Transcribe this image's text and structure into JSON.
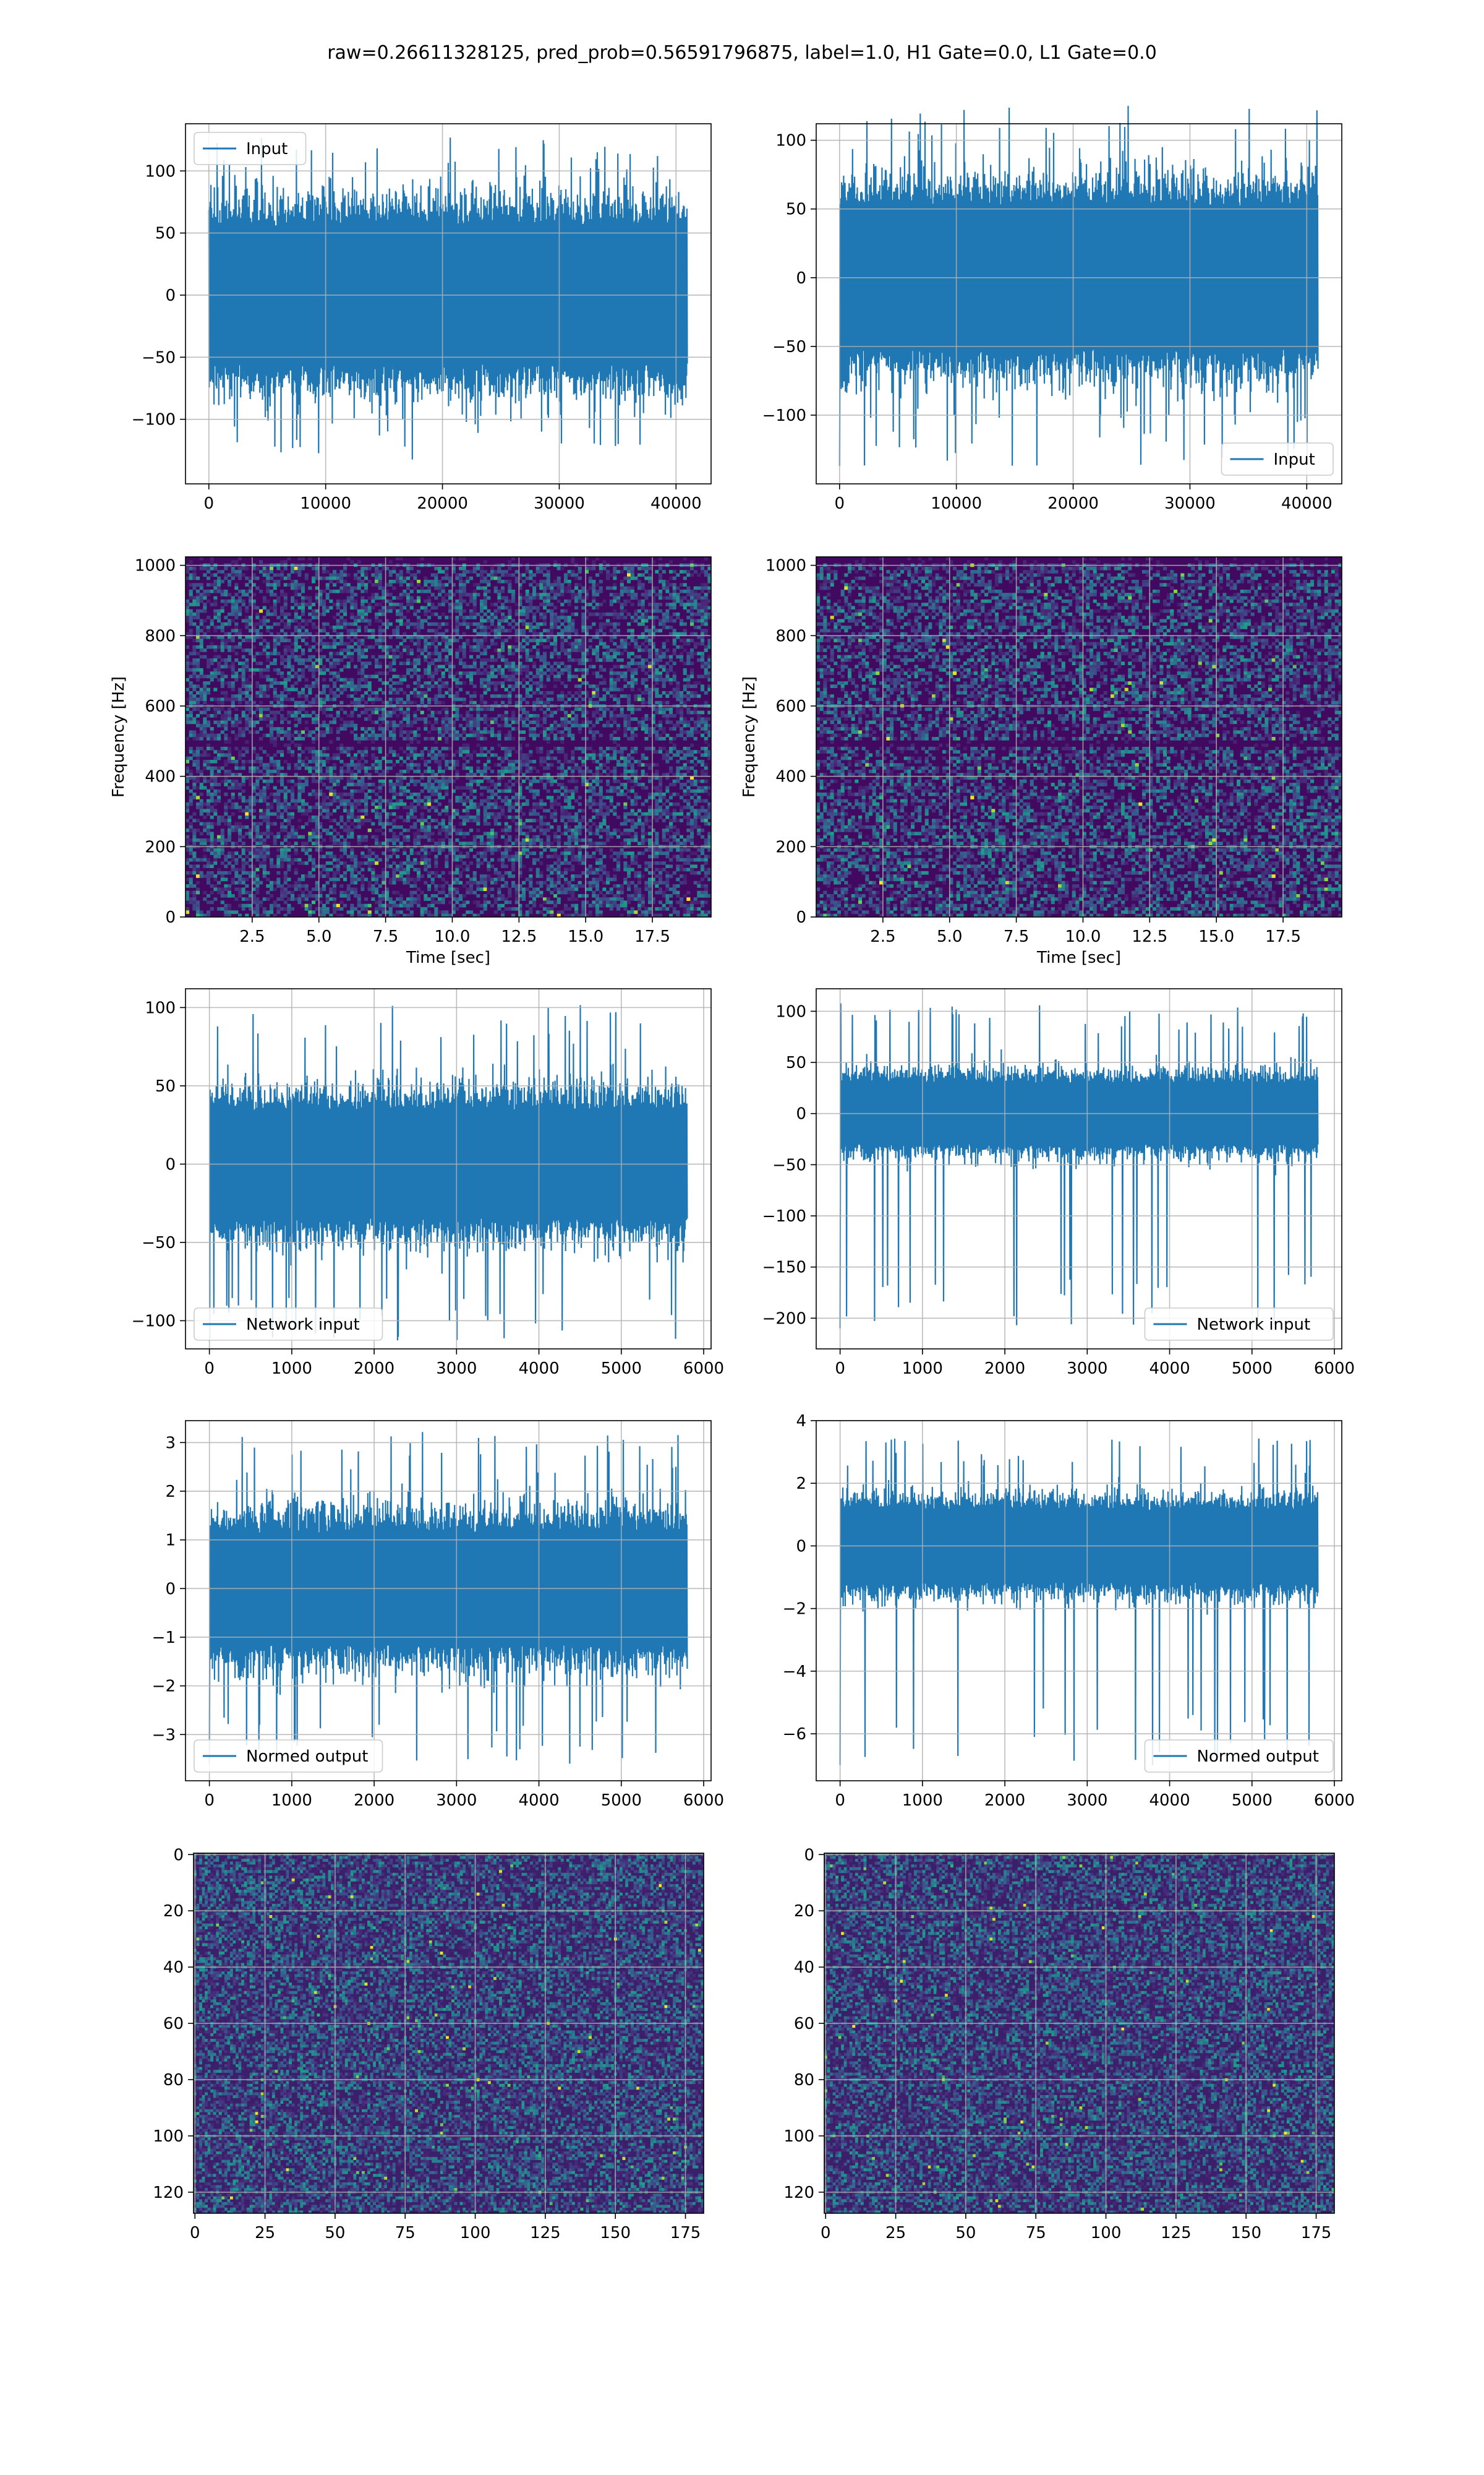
{
  "figure_title": "raw=0.26611328125, pred_prob=0.56591796875, label=1.0, H1 Gate=0.0, L1 Gate=0.0",
  "colors": {
    "series": "#1f77b4",
    "grid": "#b0b0b0",
    "viridis_dark": "#440154",
    "viridis_mid": "#31688e",
    "viridis_teal": "#35b779",
    "viridis_yellow": "#fde725"
  },
  "chart_data": [
    {
      "id": "input-h1",
      "type": "line",
      "title": "",
      "series": [
        {
          "name": "Input",
          "n": 40960,
          "amplitude": 48,
          "peak_min": -135,
          "peak_max": 128
        }
      ],
      "xlim": [
        -2000,
        43000
      ],
      "ylim": [
        -152,
        138
      ],
      "xticks": [
        0,
        10000,
        20000,
        30000,
        40000
      ],
      "xtick_labels": [
        "0",
        "10000",
        "20000",
        "30000",
        "40000"
      ],
      "yticks": [
        -100,
        -50,
        0,
        50,
        100
      ],
      "ytick_labels": [
        "−100",
        "−50",
        "0",
        "50",
        "100"
      ],
      "xlabel": "",
      "ylabel": "",
      "legend": "upper left",
      "grid": true
    },
    {
      "id": "input-l1",
      "type": "line",
      "title": "",
      "series": [
        {
          "name": "Input",
          "n": 40960,
          "amplitude": 45,
          "peak_min": -137,
          "peak_max": 126
        }
      ],
      "xlim": [
        -2000,
        43000
      ],
      "ylim": [
        -150,
        112
      ],
      "xticks": [
        0,
        10000,
        20000,
        30000,
        40000
      ],
      "xtick_labels": [
        "0",
        "10000",
        "20000",
        "30000",
        "40000"
      ],
      "yticks": [
        -100,
        -50,
        0,
        50,
        100
      ],
      "ytick_labels": [
        "−100",
        "−50",
        "0",
        "50",
        "100"
      ],
      "xlabel": "",
      "ylabel": "",
      "legend": "lower right",
      "grid": true
    },
    {
      "id": "spectrogram-h1",
      "type": "heatmap",
      "title": "",
      "xlim": [
        0,
        19.7
      ],
      "ylim": [
        0,
        1024
      ],
      "xticks": [
        2.5,
        5.0,
        7.5,
        10.0,
        12.5,
        15.0,
        17.5
      ],
      "xtick_labels": [
        "2.5",
        "5.0",
        "7.5",
        "10.0",
        "12.5",
        "15.0",
        "17.5"
      ],
      "yticks": [
        0,
        200,
        400,
        600,
        800,
        1000
      ],
      "ytick_labels": [
        "0",
        "200",
        "400",
        "600",
        "800",
        "1000"
      ],
      "xlabel": "Time [sec]",
      "ylabel": "Frequency [Hz]",
      "grid": true
    },
    {
      "id": "spectrogram-l1",
      "type": "heatmap",
      "title": "",
      "xlim": [
        0,
        19.7
      ],
      "ylim": [
        0,
        1024
      ],
      "xticks": [
        2.5,
        5.0,
        7.5,
        10.0,
        12.5,
        15.0,
        17.5
      ],
      "xtick_labels": [
        "2.5",
        "5.0",
        "7.5",
        "10.0",
        "12.5",
        "15.0",
        "17.5"
      ],
      "yticks": [
        0,
        200,
        400,
        600,
        800,
        1000
      ],
      "ytick_labels": [
        "0",
        "200",
        "400",
        "600",
        "800",
        "1000"
      ],
      "xlabel": "Time [sec]",
      "ylabel": "Frequency [Hz]",
      "grid": true
    },
    {
      "id": "network-input-h1",
      "type": "line",
      "title": "",
      "series": [
        {
          "name": "Network input",
          "n": 5800,
          "amplitude": 30,
          "peak_min": -113,
          "peak_max": 102
        }
      ],
      "xlim": [
        -290,
        6090
      ],
      "ylim": [
        -118,
        112
      ],
      "xticks": [
        0,
        1000,
        2000,
        3000,
        4000,
        5000,
        6000
      ],
      "xtick_labels": [
        "0",
        "1000",
        "2000",
        "3000",
        "4000",
        "5000",
        "6000"
      ],
      "yticks": [
        -100,
        -50,
        0,
        50,
        100
      ],
      "ytick_labels": [
        "−100",
        "−50",
        "0",
        "50",
        "100"
      ],
      "xlabel": "",
      "ylabel": "",
      "legend": "lower left",
      "grid": true
    },
    {
      "id": "network-input-l1",
      "type": "line",
      "title": "",
      "series": [
        {
          "name": "Network input",
          "n": 5800,
          "amplitude": 26,
          "peak_min": -210,
          "peak_max": 108
        }
      ],
      "xlim": [
        -290,
        6090
      ],
      "ylim": [
        -230,
        122
      ],
      "xticks": [
        0,
        1000,
        2000,
        3000,
        4000,
        5000,
        6000
      ],
      "xtick_labels": [
        "0",
        "1000",
        "2000",
        "3000",
        "4000",
        "5000",
        "6000"
      ],
      "yticks": [
        -200,
        -150,
        -100,
        -50,
        0,
        50,
        100
      ],
      "ytick_labels": [
        "−200",
        "−150",
        "−100",
        "−50",
        "0",
        "50",
        "100"
      ],
      "xlabel": "",
      "ylabel": "",
      "legend": "lower right",
      "grid": true
    },
    {
      "id": "normed-output-h1",
      "type": "line",
      "title": "",
      "series": [
        {
          "name": "Normed output",
          "n": 5800,
          "amplitude": 1.0,
          "peak_min": -3.6,
          "peak_max": 3.25
        }
      ],
      "xlim": [
        -290,
        6090
      ],
      "ylim": [
        -3.95,
        3.45
      ],
      "xticks": [
        0,
        1000,
        2000,
        3000,
        4000,
        5000,
        6000
      ],
      "xtick_labels": [
        "0",
        "1000",
        "2000",
        "3000",
        "4000",
        "5000",
        "6000"
      ],
      "yticks": [
        -3,
        -2,
        -1,
        0,
        1,
        2,
        3
      ],
      "ytick_labels": [
        "−3",
        "−2",
        "−1",
        "0",
        "1",
        "2",
        "3"
      ],
      "xlabel": "",
      "ylabel": "",
      "legend": "lower left",
      "grid": true
    },
    {
      "id": "normed-output-l1",
      "type": "line",
      "title": "",
      "series": [
        {
          "name": "Normed output",
          "n": 5800,
          "amplitude": 1.0,
          "peak_min": -7.0,
          "peak_max": 3.5
        }
      ],
      "xlim": [
        -290,
        6090
      ],
      "ylim": [
        -7.5,
        4.0
      ],
      "xticks": [
        0,
        1000,
        2000,
        3000,
        4000,
        5000,
        6000
      ],
      "xtick_labels": [
        "0",
        "1000",
        "2000",
        "3000",
        "4000",
        "5000",
        "6000"
      ],
      "yticks": [
        -6,
        -4,
        -2,
        0,
        2,
        4
      ],
      "ytick_labels": [
        "−6",
        "−4",
        "−2",
        "0",
        "2",
        "4"
      ],
      "xlabel": "",
      "ylabel": "",
      "legend": "lower right",
      "grid": true
    },
    {
      "id": "image-h1",
      "type": "heatmap",
      "title": "",
      "xlim": [
        -0.5,
        181.5
      ],
      "ylim": [
        127.5,
        -0.5
      ],
      "xticks": [
        0,
        25,
        50,
        75,
        100,
        125,
        150,
        175
      ],
      "xtick_labels": [
        "0",
        "25",
        "50",
        "75",
        "100",
        "125",
        "150",
        "175"
      ],
      "yticks": [
        0,
        20,
        40,
        60,
        80,
        100,
        120
      ],
      "ytick_labels": [
        "0",
        "20",
        "40",
        "60",
        "80",
        "100",
        "120"
      ],
      "xlabel": "",
      "ylabel": "",
      "grid": true
    },
    {
      "id": "image-l1",
      "type": "heatmap",
      "title": "",
      "xlim": [
        -0.5,
        181.5
      ],
      "ylim": [
        127.5,
        -0.5
      ],
      "xticks": [
        0,
        25,
        50,
        75,
        100,
        125,
        150,
        175
      ],
      "xtick_labels": [
        "0",
        "25",
        "50",
        "75",
        "100",
        "125",
        "150",
        "175"
      ],
      "yticks": [
        0,
        20,
        40,
        60,
        80,
        100,
        120
      ],
      "ytick_labels": [
        "0",
        "20",
        "40",
        "60",
        "80",
        "100",
        "120"
      ],
      "xlabel": "",
      "ylabel": "",
      "grid": true
    }
  ]
}
